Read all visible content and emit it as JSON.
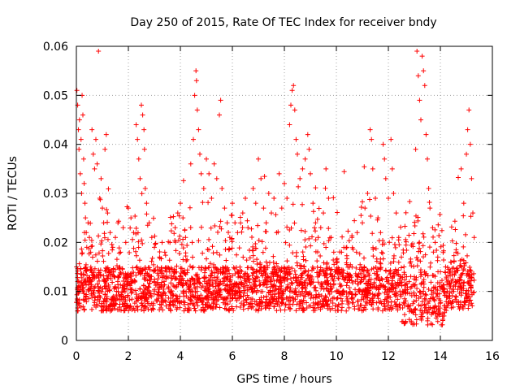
{
  "chart_data": {
    "type": "scatter",
    "title": "Day 250 of 2015, Rate Of TEC Index for receiver bndy",
    "xlabel": "GPS time / hours",
    "ylabel": "ROTI / TECUs",
    "xlim": [
      0,
      16
    ],
    "ylim": [
      0,
      0.06
    ],
    "xticks": [
      0,
      2,
      4,
      6,
      8,
      10,
      12,
      14,
      16
    ],
    "xtick_labels": [
      "0",
      "2",
      "4",
      "6",
      "8",
      "10",
      "12",
      "14",
      "16"
    ],
    "yticks": [
      0,
      0.01,
      0.02,
      0.03,
      0.04,
      0.05,
      0.06
    ],
    "ytick_labels": [
      "0",
      "0.01",
      "0.02",
      "0.03",
      "0.04",
      "0.05",
      "0.06"
    ],
    "grid": true,
    "marker": "plus",
    "color": "#ff0000",
    "series": [
      {
        "name": "ROTI",
        "points": [
          [
            0.02,
            0.051
          ],
          [
            0.05,
            0.048
          ],
          [
            0.08,
            0.043
          ],
          [
            0.1,
            0.039
          ],
          [
            0.12,
            0.045
          ],
          [
            0.15,
            0.034
          ],
          [
            0.18,
            0.041
          ],
          [
            0.2,
            0.03
          ],
          [
            0.22,
            0.05
          ],
          [
            0.25,
            0.046
          ],
          [
            0.28,
            0.037
          ],
          [
            0.3,
            0.032
          ],
          [
            0.33,
            0.028
          ],
          [
            0.35,
            0.025
          ],
          [
            0.38,
            0.022
          ],
          [
            0.4,
            0.019
          ],
          [
            0.45,
            0.024
          ],
          [
            0.5,
            0.021
          ],
          [
            0.55,
            0.018
          ],
          [
            0.6,
            0.043
          ],
          [
            0.65,
            0.038
          ],
          [
            0.7,
            0.035
          ],
          [
            0.75,
            0.041
          ],
          [
            0.8,
            0.036
          ],
          [
            0.85,
            0.059
          ],
          [
            0.9,
            0.029
          ],
          [
            0.95,
            0.033
          ],
          [
            1.0,
            0.027
          ],
          [
            1.05,
            0.024
          ],
          [
            1.1,
            0.039
          ],
          [
            1.15,
            0.042
          ],
          [
            1.2,
            0.026
          ],
          [
            1.3,
            0.022
          ],
          [
            1.4,
            0.019
          ],
          [
            1.5,
            0.021
          ],
          [
            1.6,
            0.024
          ],
          [
            1.7,
            0.018
          ],
          [
            1.8,
            0.023
          ],
          [
            1.9,
            0.02
          ],
          [
            2.0,
            0.027
          ],
          [
            2.1,
            0.025
          ],
          [
            2.2,
            0.022
          ],
          [
            2.3,
            0.044
          ],
          [
            2.35,
            0.041
          ],
          [
            2.4,
            0.037
          ],
          [
            2.45,
            0.033
          ],
          [
            2.5,
            0.048
          ],
          [
            2.55,
            0.046
          ],
          [
            2.6,
            0.043
          ],
          [
            2.62,
            0.039
          ],
          [
            2.65,
            0.031
          ],
          [
            2.7,
            0.028
          ],
          [
            2.8,
            0.024
          ],
          [
            2.9,
            0.021
          ],
          [
            3.0,
            0.019
          ],
          [
            3.2,
            0.017
          ],
          [
            3.4,
            0.018
          ],
          [
            3.6,
            0.02
          ],
          [
            3.8,
            0.023
          ],
          [
            3.9,
            0.026
          ],
          [
            4.0,
            0.028
          ],
          [
            4.1,
            0.025
          ],
          [
            4.2,
            0.021
          ],
          [
            4.4,
            0.036
          ],
          [
            4.5,
            0.041
          ],
          [
            4.55,
            0.05
          ],
          [
            4.6,
            0.055
          ],
          [
            4.62,
            0.053
          ],
          [
            4.65,
            0.047
          ],
          [
            4.7,
            0.043
          ],
          [
            4.75,
            0.038
          ],
          [
            4.8,
            0.034
          ],
          [
            4.9,
            0.031
          ],
          [
            5.0,
            0.037
          ],
          [
            5.1,
            0.034
          ],
          [
            5.2,
            0.029
          ],
          [
            5.3,
            0.036
          ],
          [
            5.4,
            0.033
          ],
          [
            5.5,
            0.046
          ],
          [
            5.55,
            0.049
          ],
          [
            5.6,
            0.031
          ],
          [
            5.7,
            0.027
          ],
          [
            5.8,
            0.024
          ],
          [
            5.9,
            0.021
          ],
          [
            6.0,
            0.028
          ],
          [
            6.1,
            0.024
          ],
          [
            6.2,
            0.022
          ],
          [
            6.4,
            0.026
          ],
          [
            6.5,
            0.029
          ],
          [
            6.6,
            0.023
          ],
          [
            6.8,
            0.031
          ],
          [
            6.9,
            0.028
          ],
          [
            7.0,
            0.037
          ],
          [
            7.1,
            0.033
          ],
          [
            7.2,
            0.027
          ],
          [
            7.3,
            0.024
          ],
          [
            7.4,
            0.03
          ],
          [
            7.5,
            0.026
          ],
          [
            7.6,
            0.029
          ],
          [
            7.7,
            0.022
          ],
          [
            7.8,
            0.034
          ],
          [
            7.9,
            0.027
          ],
          [
            8.0,
            0.032
          ],
          [
            8.1,
            0.029
          ],
          [
            8.2,
            0.044
          ],
          [
            8.25,
            0.048
          ],
          [
            8.3,
            0.051
          ],
          [
            8.35,
            0.052
          ],
          [
            8.4,
            0.047
          ],
          [
            8.45,
            0.041
          ],
          [
            8.5,
            0.038
          ],
          [
            8.6,
            0.033
          ],
          [
            8.7,
            0.035
          ],
          [
            8.8,
            0.037
          ],
          [
            8.9,
            0.042
          ],
          [
            8.95,
            0.039
          ],
          [
            9.0,
            0.034
          ],
          [
            9.1,
            0.028
          ],
          [
            9.2,
            0.024
          ],
          [
            9.3,
            0.021
          ],
          [
            9.4,
            0.023
          ],
          [
            9.5,
            0.026
          ],
          [
            9.6,
            0.035
          ],
          [
            9.7,
            0.029
          ],
          [
            9.8,
            0.021
          ],
          [
            9.9,
            0.018
          ],
          [
            10.0,
            0.016
          ],
          [
            10.2,
            0.018
          ],
          [
            10.4,
            0.019
          ],
          [
            10.6,
            0.021
          ],
          [
            10.8,
            0.022
          ],
          [
            11.0,
            0.024
          ],
          [
            11.1,
            0.027
          ],
          [
            11.2,
            0.03
          ],
          [
            11.3,
            0.043
          ],
          [
            11.35,
            0.041
          ],
          [
            11.4,
            0.035
          ],
          [
            11.5,
            0.029
          ],
          [
            11.6,
            0.025
          ],
          [
            11.7,
            0.022
          ],
          [
            11.8,
            0.04
          ],
          [
            11.85,
            0.037
          ],
          [
            11.9,
            0.033
          ],
          [
            12.0,
            0.029
          ],
          [
            12.1,
            0.041
          ],
          [
            12.15,
            0.035
          ],
          [
            12.2,
            0.03
          ],
          [
            12.3,
            0.026
          ],
          [
            12.4,
            0.021
          ],
          [
            12.5,
            0.017
          ],
          [
            12.6,
            0.015
          ],
          [
            12.7,
            0.013
          ],
          [
            12.8,
            0.012
          ],
          [
            12.9,
            0.011
          ],
          [
            13.0,
            0.013
          ],
          [
            13.05,
            0.039
          ],
          [
            13.1,
            0.059
          ],
          [
            13.15,
            0.054
          ],
          [
            13.2,
            0.049
          ],
          [
            13.25,
            0.045
          ],
          [
            13.3,
            0.058
          ],
          [
            13.35,
            0.055
          ],
          [
            13.4,
            0.052
          ],
          [
            13.45,
            0.042
          ],
          [
            13.5,
            0.037
          ],
          [
            13.55,
            0.031
          ],
          [
            13.6,
            0.027
          ],
          [
            13.7,
            0.023
          ],
          [
            13.8,
            0.02
          ],
          [
            13.9,
            0.017
          ],
          [
            14.0,
            0.014
          ],
          [
            14.2,
            0.015
          ],
          [
            14.4,
            0.016
          ],
          [
            14.6,
            0.018
          ],
          [
            14.8,
            0.035
          ],
          [
            14.9,
            0.028
          ],
          [
            15.0,
            0.038
          ],
          [
            15.05,
            0.043
          ],
          [
            15.1,
            0.047
          ],
          [
            15.15,
            0.04
          ],
          [
            15.2,
            0.033
          ],
          [
            15.25,
            0.026
          ],
          [
            15.3,
            0.021
          ]
        ]
      }
    ]
  }
}
